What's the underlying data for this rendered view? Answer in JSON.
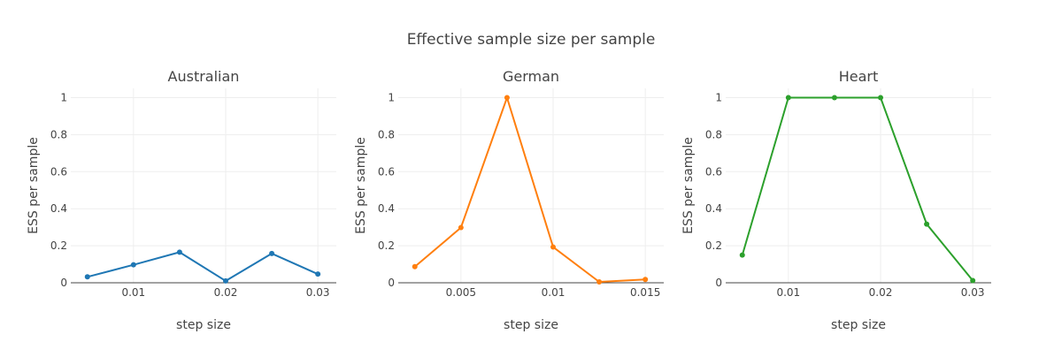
{
  "title": "Effective sample size per sample",
  "chart_data": [
    {
      "type": "line",
      "title": "Australian",
      "xlabel": "step size",
      "ylabel": "ESS per sample",
      "color": "#1f77b4",
      "xlim": [
        0.0032,
        0.032
      ],
      "ylim": [
        0,
        1.05
      ],
      "xticks": [
        0.01,
        0.02,
        0.03
      ],
      "xtick_labels": [
        "0.01",
        "0.02",
        "0.03"
      ],
      "yticks": [
        0,
        0.2,
        0.4,
        0.6,
        0.8,
        1
      ],
      "ytick_labels": [
        "0",
        "0.2",
        "0.4",
        "0.6",
        "0.8",
        "1"
      ],
      "x": [
        0.005,
        0.01,
        0.015,
        0.02,
        0.025,
        0.03
      ],
      "y": [
        0.032,
        0.097,
        0.165,
        0.01,
        0.158,
        0.047
      ]
    },
    {
      "type": "line",
      "title": "German",
      "xlabel": "step size",
      "ylabel": "ESS per sample",
      "color": "#ff7f0e",
      "xlim": [
        0.0016,
        0.016
      ],
      "ylim": [
        0,
        1.05
      ],
      "xticks": [
        0.005,
        0.01,
        0.015
      ],
      "xtick_labels": [
        "0.005",
        "0.01",
        "0.015"
      ],
      "yticks": [
        0,
        0.2,
        0.4,
        0.6,
        0.8,
        1
      ],
      "ytick_labels": [
        "0",
        "0.2",
        "0.4",
        "0.6",
        "0.8",
        "1"
      ],
      "x": [
        0.0025,
        0.005,
        0.0075,
        0.01,
        0.0125,
        0.015
      ],
      "y": [
        0.087,
        0.298,
        1.0,
        0.193,
        0.005,
        0.018
      ]
    },
    {
      "type": "line",
      "title": "Heart",
      "xlabel": "step size",
      "ylabel": "ESS per sample",
      "color": "#2ca02c",
      "xlim": [
        0.0032,
        0.032
      ],
      "ylim": [
        0,
        1.05
      ],
      "xticks": [
        0.01,
        0.02,
        0.03
      ],
      "xtick_labels": [
        "0.01",
        "0.02",
        "0.03"
      ],
      "yticks": [
        0,
        0.2,
        0.4,
        0.6,
        0.8,
        1
      ],
      "ytick_labels": [
        "0",
        "0.2",
        "0.4",
        "0.6",
        "0.8",
        "1"
      ],
      "x": [
        0.005,
        0.01,
        0.015,
        0.02,
        0.025,
        0.03
      ],
      "y": [
        0.15,
        1.0,
        1.0,
        1.0,
        0.317,
        0.012
      ]
    }
  ]
}
